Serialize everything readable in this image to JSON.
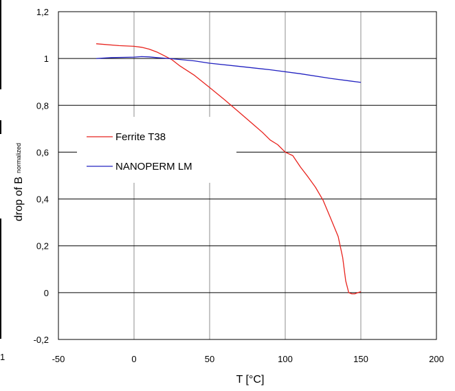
{
  "chart_data": {
    "type": "line",
    "xlabel": "T [°C]",
    "ylabel": "drop of B",
    "ylabel_subscript": "normalized",
    "xlim": [
      -50,
      200
    ],
    "ylim": [
      -0.2,
      1.2
    ],
    "x_ticks": [
      "-50",
      "0",
      "50",
      "100",
      "150",
      "200"
    ],
    "y_ticks": [
      "-0,2",
      "0",
      "0,2",
      "0,4",
      "0,6",
      "0,8",
      "1",
      "1,2"
    ],
    "grid": true,
    "legend_position": "middle-left",
    "series": [
      {
        "name": "Ferrite T38",
        "color": "#e8221c",
        "x": [
          -25,
          -10,
          0,
          5,
          10,
          15,
          20,
          25,
          30,
          40,
          50,
          60,
          70,
          80,
          85,
          90,
          95,
          100,
          105,
          110,
          115,
          120,
          125,
          130,
          135,
          138,
          140,
          142,
          144,
          146,
          148,
          150
        ],
        "y": [
          1.063,
          1.055,
          1.052,
          1.048,
          1.04,
          1.028,
          1.012,
          0.995,
          0.97,
          0.928,
          0.876,
          0.823,
          0.768,
          0.712,
          0.684,
          0.652,
          0.632,
          0.6,
          0.585,
          0.537,
          0.495,
          0.45,
          0.395,
          0.318,
          0.24,
          0.15,
          0.05,
          0.0,
          -0.005,
          -0.005,
          0.0,
          0.004
        ]
      },
      {
        "name": "NANOPERM LM",
        "color": "#2020c0",
        "x": [
          -25,
          -15,
          -5,
          0,
          5,
          10,
          15,
          25,
          40,
          50,
          70,
          90,
          110,
          130,
          150
        ],
        "y": [
          1.0,
          1.004,
          1.005,
          1.006,
          1.008,
          1.007,
          1.004,
          0.999,
          0.99,
          0.98,
          0.966,
          0.952,
          0.935,
          0.915,
          0.898
        ]
      }
    ]
  },
  "stray_label": "1"
}
